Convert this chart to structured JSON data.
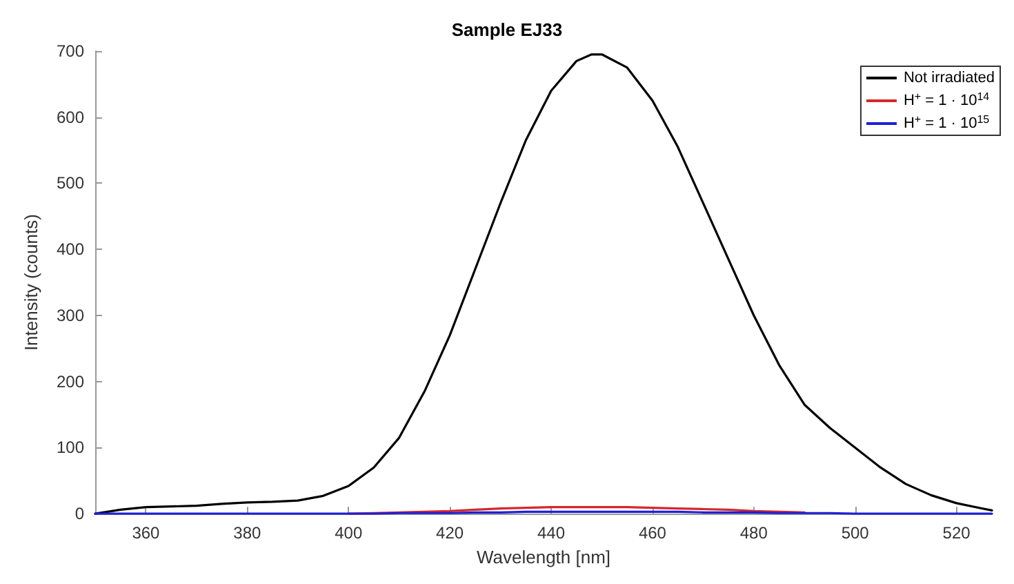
{
  "chart_data": {
    "type": "line",
    "title": "Sample EJ33",
    "xlabel": "Wavelength [nm]",
    "ylabel": "Intensity (counts)",
    "xlim": [
      350,
      527
    ],
    "xticks": [
      360,
      380,
      400,
      420,
      440,
      460,
      480,
      500,
      520
    ],
    "ylim": [
      0,
      700
    ],
    "yticks": [
      0,
      100,
      200,
      300,
      400,
      500,
      600,
      700
    ],
    "grid": false,
    "legend": "top right",
    "marker": "none",
    "line_style": "solid",
    "x": [
      350,
      355,
      360,
      365,
      370,
      375,
      380,
      385,
      390,
      395,
      400,
      405,
      410,
      415,
      420,
      425,
      430,
      435,
      440,
      445,
      448,
      450,
      455,
      460,
      465,
      470,
      475,
      480,
      485,
      490,
      495,
      500,
      505,
      510,
      515,
      520,
      525,
      527
    ],
    "series": [
      {
        "name": "Not irradiated",
        "color": "#000000",
        "values": [
          0,
          6,
          10,
          11,
          12,
          15,
          17,
          18,
          20,
          27,
          42,
          70,
          115,
          185,
          270,
          370,
          470,
          565,
          640,
          685,
          695,
          695,
          675,
          625,
          555,
          470,
          385,
          300,
          225,
          165,
          130,
          100,
          70,
          45,
          28,
          16,
          8,
          5
        ]
      },
      {
        "name": "H$^{+}$ = 1 · 10$^{14}$",
        "color": "#d62728",
        "values": [
          null,
          null,
          null,
          null,
          null,
          null,
          null,
          null,
          null,
          null,
          0,
          1,
          2,
          3,
          4,
          6,
          8,
          9,
          10,
          10,
          10,
          10,
          10,
          9,
          8,
          7,
          6,
          4,
          3,
          2,
          null,
          null,
          null,
          null,
          null,
          null,
          null,
          null
        ]
      },
      {
        "name": "H$^{+}$ = 1 · 10$^{15}$",
        "color": "#1f1fd6",
        "values": [
          0,
          0,
          0,
          0,
          0,
          0,
          0,
          0,
          0,
          0,
          0,
          0,
          1,
          1,
          1,
          2,
          2,
          3,
          3,
          3,
          3,
          3,
          3,
          3,
          3,
          2,
          2,
          2,
          1,
          1,
          1,
          0,
          0,
          0,
          0,
          0,
          0,
          0
        ]
      }
    ]
  }
}
